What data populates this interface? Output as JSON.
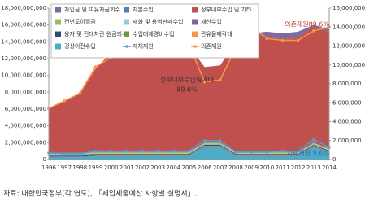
{
  "chart_data": {
    "type": "stacked-area",
    "categories": [
      "1996",
      "1997",
      "1998",
      "1999",
      "2000",
      "2001",
      "2002",
      "2003",
      "2004",
      "2005",
      "2006",
      "2007",
      "2008",
      "2009",
      "2010",
      "2011",
      "2012",
      "2013",
      "2014"
    ],
    "series": [
      {
        "name": "경상이전수입",
        "color": "#4bacc6",
        "values": [
          300000000,
          300000000,
          300000000,
          400000000,
          400000000,
          400000000,
          400000000,
          400000000,
          400000000,
          400000000,
          1500000000,
          1500000000,
          400000000,
          400000000,
          400000000,
          400000000,
          400000000,
          1500000000,
          800000000
        ]
      },
      {
        "name": "재산수입",
        "color": "#8064a2",
        "values": [
          100000000,
          100000000,
          100000000,
          100000000,
          100000000,
          100000000,
          100000000,
          100000000,
          100000000,
          100000000,
          100000000,
          100000000,
          100000000,
          100000000,
          100000000,
          100000000,
          100000000,
          100000000,
          100000000
        ]
      },
      {
        "name": "관유물매각대",
        "color": "#f79646",
        "values": [
          50000000,
          50000000,
          50000000,
          50000000,
          50000000,
          50000000,
          50000000,
          50000000,
          50000000,
          50000000,
          50000000,
          50000000,
          50000000,
          50000000,
          50000000,
          50000000,
          50000000,
          50000000,
          50000000
        ]
      },
      {
        "name": "융자 및 전대차관 원금회수",
        "color": "#2c4d75",
        "values": [
          100000000,
          100000000,
          100000000,
          100000000,
          100000000,
          100000000,
          100000000,
          100000000,
          100000000,
          100000000,
          100000000,
          100000000,
          100000000,
          100000000,
          100000000,
          100000000,
          100000000,
          100000000,
          100000000
        ]
      },
      {
        "name": "수입대체경비수입",
        "color": "#77933c",
        "values": [
          50000000,
          50000000,
          50000000,
          50000000,
          50000000,
          50000000,
          50000000,
          50000000,
          50000000,
          50000000,
          50000000,
          50000000,
          50000000,
          50000000,
          50000000,
          50000000,
          50000000,
          50000000,
          50000000
        ]
      },
      {
        "name": "재화 및 용역판매수입",
        "color": "#93cddd",
        "values": [
          80000000,
          80000000,
          80000000,
          80000000,
          80000000,
          80000000,
          80000000,
          80000000,
          80000000,
          80000000,
          80000000,
          80000000,
          80000000,
          80000000,
          80000000,
          80000000,
          80000000,
          80000000,
          80000000
        ]
      },
      {
        "name": "전년도이월금",
        "color": "#9bbb59",
        "values": [
          100000000,
          100000000,
          100000000,
          100000000,
          100000000,
          100000000,
          100000000,
          100000000,
          100000000,
          100000000,
          100000000,
          100000000,
          100000000,
          100000000,
          100000000,
          100000000,
          100000000,
          100000000,
          100000000
        ]
      },
      {
        "name": "자본수입",
        "color": "#4f81bd",
        "values": [
          30000000,
          30000000,
          30000000,
          30000000,
          30000000,
          30000000,
          30000000,
          30000000,
          30000000,
          30000000,
          30000000,
          30000000,
          30000000,
          30000000,
          30000000,
          30000000,
          30000000,
          30000000,
          30000000
        ]
      },
      {
        "name": "정부내부수입 및 기타",
        "color": "#c0504d",
        "values": [
          5190000000,
          6190000000,
          6990000000,
          9890000000,
          11790000000,
          11890000000,
          12390000000,
          13690000000,
          12890000000,
          12590000000,
          8990000000,
          9190000000,
          13090000000,
          14090000000,
          13690000000,
          13390000000,
          13590000000,
          13790000000,
          13890000000
        ]
      },
      {
        "name": "차입금 및 여유자금회수",
        "color": "#7f6a9e",
        "values": [
          0,
          0,
          0,
          0,
          0,
          0,
          0,
          0,
          0,
          0,
          0,
          0,
          0,
          0,
          600000000,
          700000000,
          700000000,
          200000000,
          300000000
        ]
      },
      {
        "name": "자체재원",
        "color": "#4f9fd6",
        "axis": "y2",
        "values": [
          700000,
          600000,
          600000,
          900000,
          900000,
          900000,
          900000,
          900000,
          900000,
          900000,
          2000000,
          2000000,
          800000,
          800000,
          800000,
          900000,
          900000,
          2100000,
          1300000
        ]
      },
      {
        "name": "의존재원",
        "color": "#f79646",
        "axis": "y2",
        "values": [
          5400000,
          6200000,
          7000000,
          9800000,
          10800000,
          11000000,
          11800000,
          13500000,
          12800000,
          12200000,
          8200000,
          8400000,
          11800000,
          14000000,
          12800000,
          12600000,
          12600000,
          13600000,
          14000000
        ]
      }
    ],
    "ylim": [
      0,
      18000000000
    ],
    "yticks": [
      0,
      {
        "value": 2000000000,
        "label": "2,000,000,000"
      },
      {
        "value": 4000000000,
        "label": "4,000,000,000"
      },
      {
        "value": 6000000000,
        "label": "6,000,000,000"
      },
      {
        "value": 8000000000,
        "label": "8,000,000,000"
      },
      {
        "value": 10000000000,
        "label": "10,000,000,000"
      },
      {
        "value": 12000000000,
        "label": "12,000,000,000"
      },
      {
        "value": 14000000000,
        "label": "14,000,000,000"
      },
      {
        "value": 16000000000,
        "label": "16,000,000,000"
      },
      {
        "value": 18000000000,
        "label": "18,000,000,000"
      }
    ],
    "y2lim": [
      0,
      16000000
    ],
    "y2ticks": [
      0,
      {
        "value": 2000000,
        "label": "2,000,000"
      },
      {
        "value": 4000000,
        "label": "4,000,000"
      },
      {
        "value": 6000000,
        "label": "6,000,000"
      },
      {
        "value": 8000000,
        "label": "8,000,000"
      },
      {
        "value": 10000000,
        "label": "10,000,000"
      },
      {
        "value": 12000000,
        "label": "12,000,000"
      },
      {
        "value": 14000000,
        "label": "14,000,000"
      },
      {
        "value": 16000000,
        "label": "16,000,000"
      }
    ],
    "annotations": [
      "정부내부수입및기타",
      "89.6%",
      "의존재원89.6%",
      "자체재원 9.6%"
    ],
    "source": "자료: 대한민국정부(각 연도), 「세입세출예산 사항별 설명서」."
  }
}
